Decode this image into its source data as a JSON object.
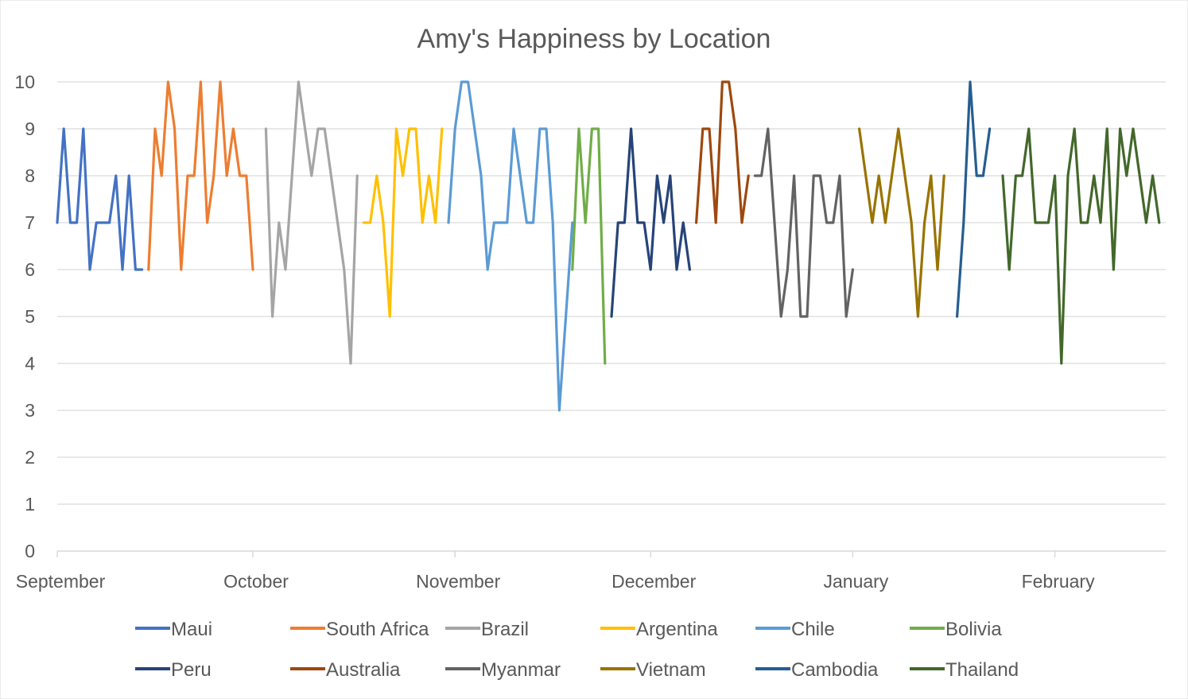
{
  "chart_data": {
    "type": "line",
    "title": "Amy's Happiness by Location",
    "xlabel": "",
    "ylabel": "",
    "ylim": [
      0,
      10
    ],
    "yticks": [
      0,
      1,
      2,
      3,
      4,
      5,
      6,
      7,
      8,
      9,
      10
    ],
    "xlim": [
      "2016-09-01",
      "2017-02-18"
    ],
    "xticks": [
      {
        "date": "2016-09-01",
        "label": "September"
      },
      {
        "date": "2016-10-01",
        "label": "October"
      },
      {
        "date": "2016-11-01",
        "label": "November"
      },
      {
        "date": "2016-12-01",
        "label": "December"
      },
      {
        "date": "2017-01-01",
        "label": "January"
      },
      {
        "date": "2017-02-01",
        "label": "February"
      }
    ],
    "grid": "horizontal",
    "legend": "bottom",
    "series": [
      {
        "name": "Maui",
        "color": "#4472C4",
        "start": "2016-09-01",
        "values": [
          7,
          9,
          7,
          7,
          9,
          6,
          7,
          7,
          7,
          8,
          6,
          8,
          6,
          6
        ]
      },
      {
        "name": "South Africa",
        "color": "#ED7D31",
        "start": "2016-09-15",
        "values": [
          6,
          9,
          8,
          10,
          9,
          6,
          8,
          8,
          10,
          7,
          8,
          10,
          8,
          9,
          8,
          8,
          6
        ]
      },
      {
        "name": "Brazil",
        "color": "#A5A5A5",
        "start": "2016-10-03",
        "values": [
          9,
          5,
          7,
          6,
          8,
          10,
          9,
          8,
          9,
          9,
          8,
          7,
          6,
          4,
          8
        ]
      },
      {
        "name": "Argentina",
        "color": "#FFC000",
        "start": "2016-10-18",
        "values": [
          7,
          7,
          8,
          7,
          5,
          9,
          8,
          9,
          9,
          7,
          8,
          7,
          9
        ]
      },
      {
        "name": "Chile",
        "color": "#5B9BD5",
        "start": "2016-10-31",
        "values": [
          7,
          9,
          10,
          10,
          9,
          8,
          6,
          7,
          7,
          7,
          9,
          8,
          7,
          7,
          9,
          9,
          7,
          3,
          5,
          7
        ]
      },
      {
        "name": "Bolivia",
        "color": "#70AD47",
        "start": "2016-11-19",
        "values": [
          6,
          9,
          7,
          9,
          9,
          4
        ]
      },
      {
        "name": "Peru",
        "color": "#264478",
        "start": "2016-11-25",
        "values": [
          5,
          7,
          7,
          9,
          7,
          7,
          6,
          8,
          7,
          8,
          6,
          7,
          6
        ]
      },
      {
        "name": "Australia",
        "color": "#9E480E",
        "start": "2016-12-08",
        "values": [
          7,
          9,
          9,
          7,
          10,
          10,
          9,
          7,
          8
        ]
      },
      {
        "name": "Myanmar",
        "color": "#636363",
        "start": "2016-12-17",
        "values": [
          8,
          8,
          9,
          7,
          5,
          6,
          8,
          5,
          5,
          8,
          8,
          7,
          7,
          8,
          5,
          6
        ]
      },
      {
        "name": "Vietnam",
        "color": "#997300",
        "start": "2017-01-02",
        "values": [
          9,
          8,
          7,
          8,
          7,
          8,
          9,
          8,
          7,
          5,
          7,
          8,
          6,
          8
        ]
      },
      {
        "name": "Cambodia",
        "color": "#255E91",
        "start": "2017-01-17",
        "values": [
          5,
          7,
          10,
          8,
          8,
          9
        ]
      },
      {
        "name": "Thailand",
        "color": "#43682B",
        "start": "2017-01-24",
        "values": [
          8,
          6,
          8,
          8,
          9,
          7,
          7,
          7,
          8,
          4,
          8,
          9,
          7,
          7,
          8,
          7,
          9,
          6,
          9,
          8,
          9,
          8,
          7,
          8,
          7
        ]
      }
    ]
  }
}
